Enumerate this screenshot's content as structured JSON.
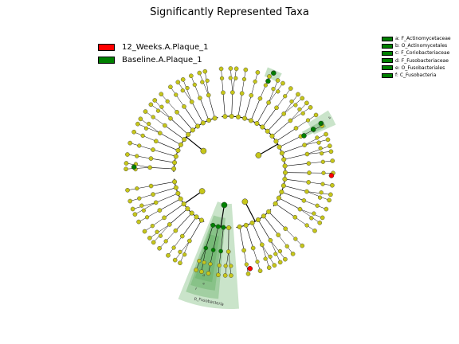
{
  "title": "Significantly Represented Taxa",
  "colors": {
    "enriched_12_weeks": "#ff0000",
    "enriched_baseline": "#008000",
    "node_default": "#c6c61a",
    "highlight_fill": "#5aaa5a",
    "branch": "#000000"
  },
  "groups": [
    {
      "label": "12_Weeks.A.Plaque_1",
      "color": "#ff0000"
    },
    {
      "label": "Baseline.A.Plaque_1",
      "color": "#008000"
    }
  ],
  "taxa_legend": [
    {
      "label": "a: F_Actinomycetaceae",
      "color": "#008000"
    },
    {
      "label": "b: O_Actinomycetales",
      "color": "#008000"
    },
    {
      "label": "c: F_Coriobacteriaceae",
      "color": "#008000"
    },
    {
      "label": "d: F_Fusobacteriaceae",
      "color": "#008000"
    },
    {
      "label": "e: O_Fusobacteriales",
      "color": "#008000"
    },
    {
      "label": "f: C_Fusobacteria",
      "color": "#008000"
    }
  ],
  "clade_labels": [
    {
      "text": "p_Fusobacteria"
    },
    {
      "text": "f"
    },
    {
      "text": "e"
    },
    {
      "text": "d"
    },
    {
      "text": "c"
    },
    {
      "text": "b"
    },
    {
      "text": "a"
    }
  ]
}
